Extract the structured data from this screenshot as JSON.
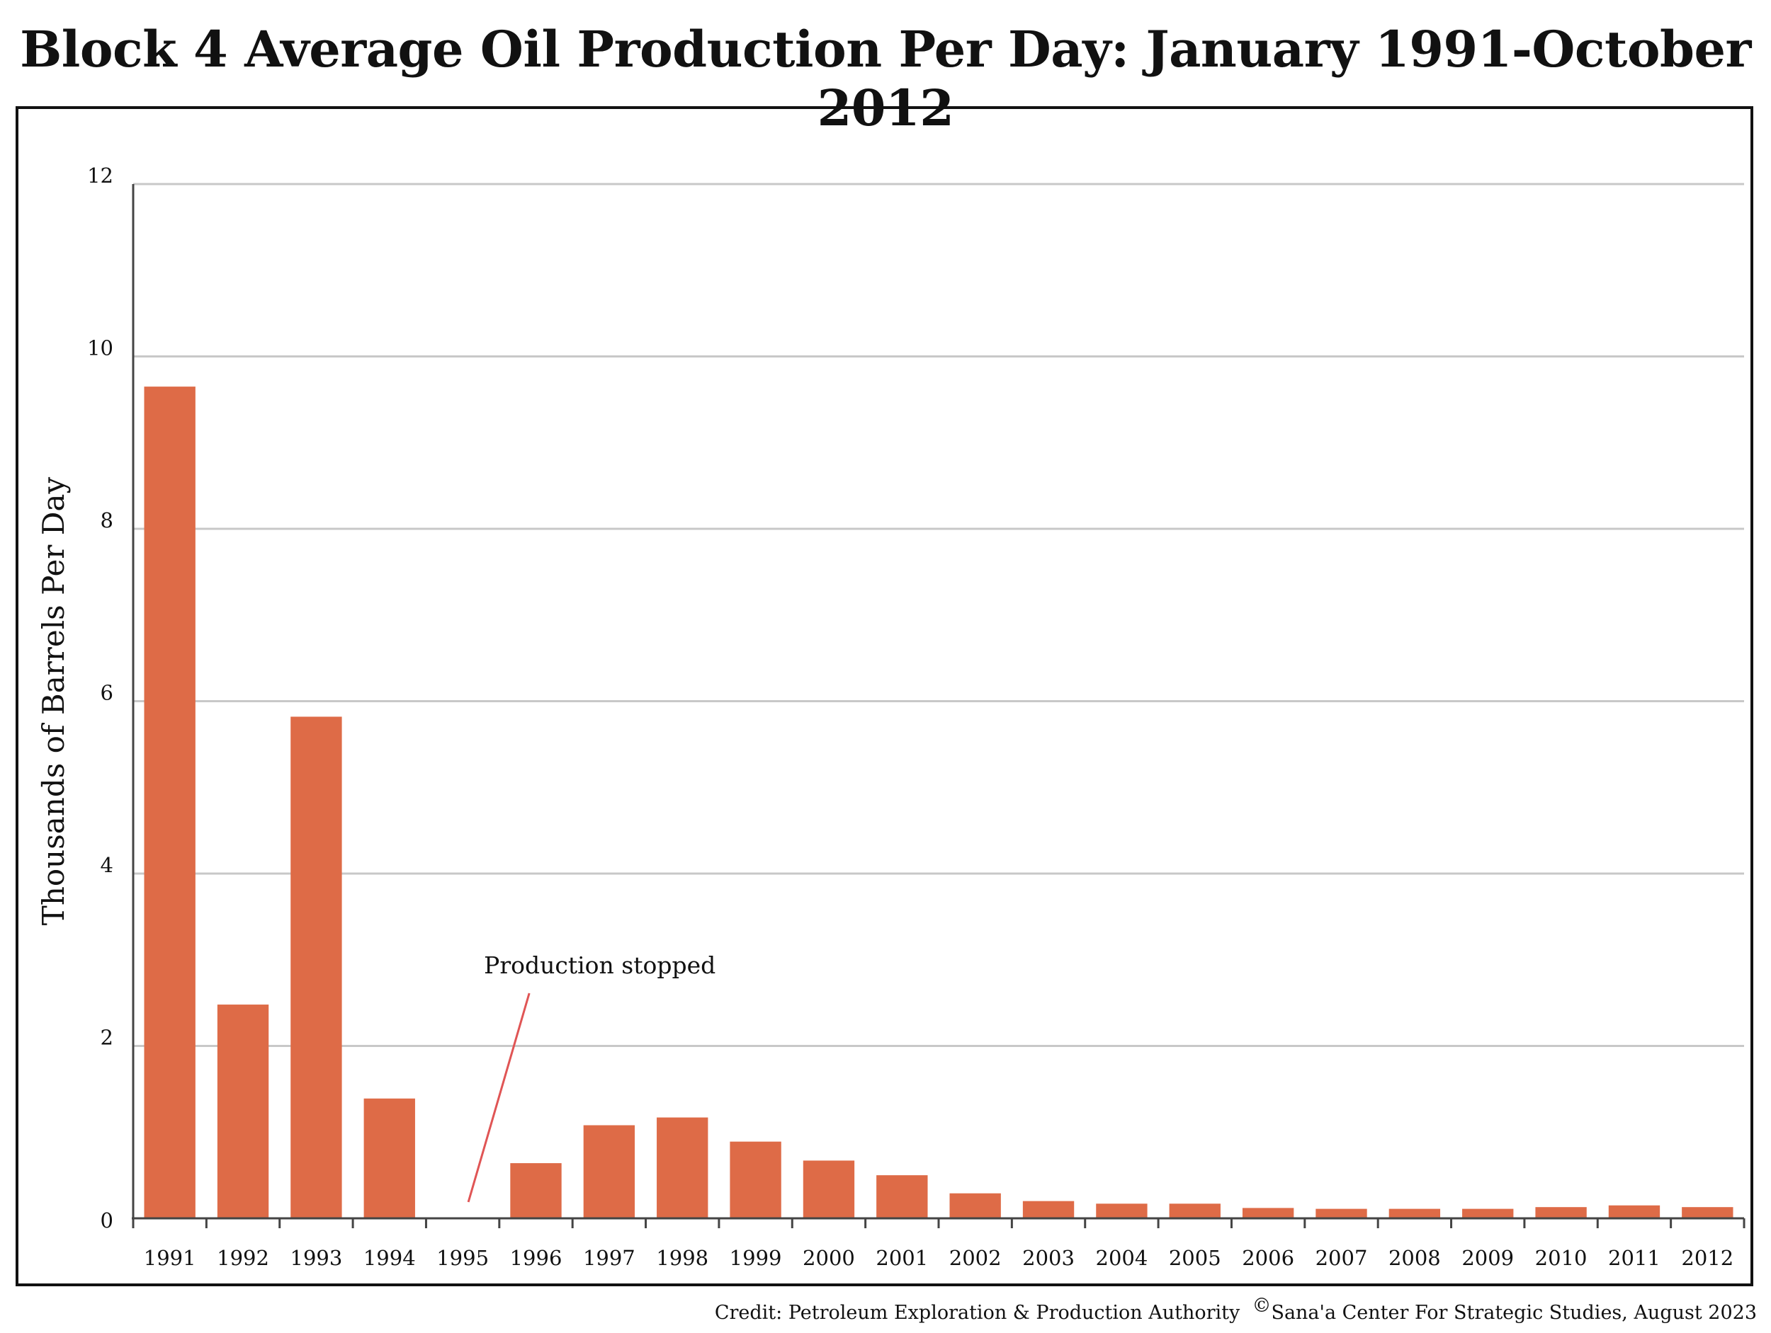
{
  "chart_data": {
    "type": "bar",
    "title": "Block 4 Average Oil Production Per Day: January 1991-October 2012",
    "xlabel": "",
    "ylabel": "Thousands of Barrels Per Day",
    "ylim": [
      0,
      12
    ],
    "yticks": [
      "0",
      "2",
      "4",
      "6",
      "8",
      "10",
      "12"
    ],
    "grid": true,
    "categories": [
      "1991",
      "1992",
      "1993",
      "1994",
      "1995",
      "1996",
      "1997",
      "1998",
      "1999",
      "2000",
      "2001",
      "2002",
      "2003",
      "2004",
      "2005",
      "2006",
      "2007",
      "2008",
      "2009",
      "2010",
      "2011",
      "2012"
    ],
    "values": [
      9.65,
      2.48,
      5.82,
      1.39,
      0,
      0.64,
      1.08,
      1.17,
      0.89,
      0.67,
      0.5,
      0.29,
      0.2,
      0.17,
      0.17,
      0.12,
      0.11,
      0.11,
      0.11,
      0.13,
      0.15,
      0.13
    ],
    "bar_color": "#de6b47",
    "annotations": [
      {
        "text": "Production stopped",
        "category": "1995",
        "arrow_color": "#e05555"
      }
    ]
  },
  "credit": {
    "text": "Credit: Petroleum Exploration & Production Authority",
    "copyright_symbol": "©",
    "copyright_text": "Sana'a Center For Strategic Studies, August 2023"
  }
}
